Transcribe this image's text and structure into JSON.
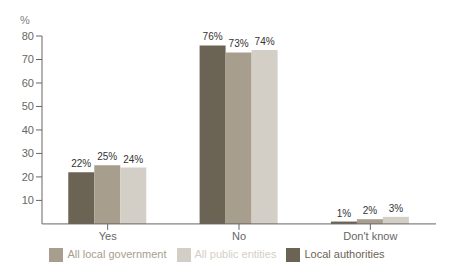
{
  "chart_data": {
    "type": "bar",
    "ylabel": "%",
    "categories": [
      "Yes",
      "No",
      "Don't know"
    ],
    "series": [
      {
        "name": "Local authorities",
        "values": [
          22,
          76,
          1
        ],
        "value_labels": [
          "22%",
          "76%",
          "1%"
        ],
        "color": "#6b6455"
      },
      {
        "name": "All local government",
        "values": [
          25,
          73,
          2
        ],
        "value_labels": [
          "25%",
          "73%",
          "2%"
        ],
        "color": "#a89e8e"
      },
      {
        "name": "All public entities",
        "values": [
          24,
          74,
          3
        ],
        "value_labels": [
          "24%",
          "74%",
          "3%"
        ],
        "color": "#d4cfc6"
      }
    ],
    "ylim": [
      0,
      80
    ],
    "yticks": [
      10,
      20,
      30,
      40,
      50,
      60,
      70,
      80
    ],
    "data_labels": true,
    "grid": false
  }
}
